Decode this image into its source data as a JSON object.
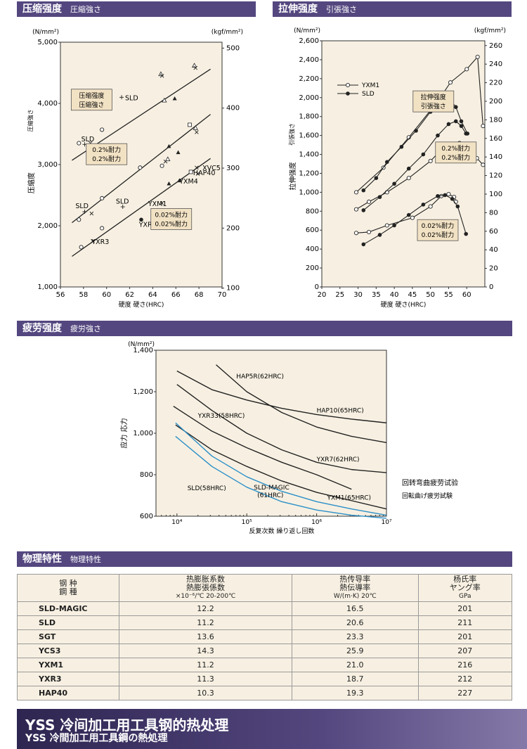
{
  "sections": {
    "compression": {
      "title": "压缩强度",
      "sub": "圧縮強さ"
    },
    "tensile": {
      "title": "拉伸强度",
      "sub": "引張強さ"
    },
    "fatigue": {
      "title": "疲劳强度",
      "sub": "疲労強さ"
    },
    "physical": {
      "title": "物理特性",
      "sub": "物理特性"
    }
  },
  "chart_data": [
    {
      "type": "scatter",
      "name": "compression",
      "xlabel": "硬度 硬さ(HRC)",
      "ylabel": "压缩度",
      "ylabel2": "圧縮強さ",
      "unit_left": "(N/mm²)",
      "unit_right": "(kgf/mm²)",
      "xlim": [
        56,
        70
      ],
      "ylim": [
        1000,
        5000
      ],
      "x_ticks": [
        "56",
        "58",
        "60",
        "62",
        "64",
        "66",
        "68",
        "70"
      ],
      "y_ticks": [
        "1,000",
        "2,000",
        "3,000",
        "4,000",
        "5,000"
      ],
      "y2_ticks": [
        "100",
        "200",
        "300",
        "400",
        "500"
      ],
      "y2_ticks_values": [
        980.7,
        1961.3,
        2942,
        3922.7,
        4903.3
      ],
      "lines": [
        {
          "x": [
            57,
            69
          ],
          "y": [
            3070,
            4560
          ]
        },
        {
          "x": [
            57,
            69
          ],
          "y": [
            2050,
            3820
          ]
        },
        {
          "x": [
            57,
            69
          ],
          "y": [
            1500,
            3100
          ]
        }
      ],
      "points": [
        {
          "x": 57.6,
          "y": 3350,
          "m": "o"
        },
        {
          "x": 58.1,
          "y": 3330,
          "m": "+"
        },
        {
          "x": 58.6,
          "y": 3350,
          "m": "x"
        },
        {
          "x": 59.6,
          "y": 3570,
          "m": "o"
        },
        {
          "x": 61.3,
          "y": 4100,
          "m": "+"
        },
        {
          "x": 64.7,
          "y": 4480,
          "m": "tri"
        },
        {
          "x": 64.8,
          "y": 4450,
          "m": "x"
        },
        {
          "x": 65.0,
          "y": 4050,
          "m": "tri"
        },
        {
          "x": 65.9,
          "y": 4080,
          "m": "trif"
        },
        {
          "x": 67.2,
          "y": 3650,
          "m": "sq"
        },
        {
          "x": 67.8,
          "y": 3530,
          "m": "x"
        },
        {
          "x": 67.7,
          "y": 3600,
          "m": "tri"
        },
        {
          "x": 67.6,
          "y": 4620,
          "m": "tri"
        },
        {
          "x": 67.7,
          "y": 4580,
          "m": "x"
        },
        {
          "x": 57.6,
          "y": 2100,
          "m": "o"
        },
        {
          "x": 58.1,
          "y": 2230,
          "m": "+"
        },
        {
          "x": 58.7,
          "y": 2200,
          "m": "x"
        },
        {
          "x": 59.6,
          "y": 2450,
          "m": "o"
        },
        {
          "x": 61.4,
          "y": 2310,
          "m": "+"
        },
        {
          "x": 62.9,
          "y": 2950,
          "m": "o"
        },
        {
          "x": 64.8,
          "y": 2980,
          "m": "o"
        },
        {
          "x": 65.1,
          "y": 3050,
          "m": "x"
        },
        {
          "x": 65.3,
          "y": 3090,
          "m": "tri"
        },
        {
          "x": 65.4,
          "y": 3300,
          "m": "trif"
        },
        {
          "x": 66.2,
          "y": 3200,
          "m": "trif"
        },
        {
          "x": 67.3,
          "y": 2880,
          "m": "sq"
        },
        {
          "x": 67.8,
          "y": 2950,
          "m": "x"
        },
        {
          "x": 57.8,
          "y": 1650,
          "m": "o"
        },
        {
          "x": 58.8,
          "y": 1750,
          "m": "x"
        },
        {
          "x": 59.6,
          "y": 1960,
          "m": "o"
        },
        {
          "x": 63.0,
          "y": 2100,
          "m": "dot"
        },
        {
          "x": 64.8,
          "y": 2370,
          "m": "x"
        },
        {
          "x": 65.4,
          "y": 2690,
          "m": "trif"
        },
        {
          "x": 66.3,
          "y": 2740,
          "m": "trif"
        },
        {
          "x": 67.9,
          "y": 2850,
          "m": "x"
        }
      ],
      "labels": [
        {
          "text": "SLD",
          "x": 61.6,
          "y": 4050
        },
        {
          "text": "SLD",
          "x": 57.8,
          "y": 3380
        },
        {
          "text": "SLD",
          "x": 57.3,
          "y": 2290
        },
        {
          "text": "SLD",
          "x": 60.8,
          "y": 2360
        },
        {
          "text": "YXM1",
          "x": 63.6,
          "y": 2320
        },
        {
          "text": "YXM4",
          "x": 66.3,
          "y": 2690
        },
        {
          "text": "XVC5",
          "x": 68.3,
          "y": 2910
        },
        {
          "text": "HAP40",
          "x": 67.5,
          "y": 2830
        },
        {
          "text": "YXR7",
          "x": 62.8,
          "y": 1980
        },
        {
          "text": "YXR3",
          "x": 58.7,
          "y": 1700
        }
      ],
      "boxes": [
        {
          "lines": [
            "压缩强度",
            "压縮強さ"
          ],
          "x": 58.7,
          "y": 4060
        },
        {
          "lines": [
            "0.2%耐力",
            "0.2%耐力"
          ],
          "x": 60.0,
          "y": 3170
        },
        {
          "lines": [
            "0.02%耐力",
            "0.02%耐力"
          ],
          "x": 65.6,
          "y": 2110
        }
      ]
    },
    {
      "type": "line",
      "name": "tensile",
      "xlabel": "硬度 硬さ(HRC)",
      "ylabel": "拉伸强度",
      "ylabel2": "引張強さ",
      "unit_left": "(N/mm²)",
      "unit_right": "(kgf/mm²)",
      "xlim": [
        20,
        65
      ],
      "ylim": [
        0,
        2600
      ],
      "x_ticks": [
        "20",
        "25",
        "30",
        "35",
        "40",
        "45",
        "50",
        "55",
        "60"
      ],
      "y_ticks": [
        "0",
        "200",
        "400",
        "600",
        "800",
        "1,000",
        "1,200",
        "1,400",
        "1,600",
        "1,800",
        "2,000",
        "2,200",
        "2,400",
        "2,600"
      ],
      "y2_ticks": [
        "0",
        "20",
        "40",
        "60",
        "80",
        "100",
        "120",
        "140",
        "160",
        "180",
        "200",
        "220",
        "240",
        "260"
      ],
      "y2_ticks_values": [
        0,
        196.1,
        392.3,
        588.4,
        784.5,
        980.7,
        1176.8,
        1372.9,
        1569.1,
        1765.2,
        1961.3,
        2157.5,
        2353.6,
        2549.7
      ],
      "legend": [
        {
          "name": "YXM1",
          "m": "o"
        },
        {
          "name": "SLD",
          "m": "dot"
        }
      ],
      "series": [
        {
          "name": "YXM1",
          "m": "o",
          "x": [
            29.5,
            37,
            44,
            52,
            55.5,
            60,
            63,
            64.5
          ],
          "y": [
            1000,
            1260,
            1580,
            1960,
            2160,
            2300,
            2430,
            1700
          ]
        },
        {
          "name": "YXM1",
          "m": "o",
          "x": [
            29.5,
            33,
            38,
            44,
            50,
            54,
            58,
            62.8,
            64.5
          ],
          "y": [
            820,
            900,
            1000,
            1150,
            1330,
            1490,
            1520,
            1360,
            1290
          ]
        },
        {
          "name": "YXM1",
          "m": "o",
          "x": [
            29.5,
            33,
            38,
            45,
            50,
            53,
            55,
            56.5,
            57
          ],
          "y": [
            570,
            580,
            650,
            730,
            850,
            960,
            980,
            950,
            900
          ]
        },
        {
          "name": "SLD",
          "m": "dot",
          "x": [
            31.5,
            35,
            38,
            42,
            46,
            50,
            53,
            55,
            57,
            58.5,
            60.2
          ],
          "y": [
            1020,
            1150,
            1320,
            1480,
            1650,
            1850,
            1980,
            2000,
            1900,
            1750,
            1620
          ]
        },
        {
          "name": "SLD",
          "m": "dot",
          "x": [
            31.5,
            36,
            40,
            44,
            48,
            52,
            55,
            57,
            58.5,
            59.8
          ],
          "y": [
            810,
            950,
            1090,
            1250,
            1400,
            1600,
            1720,
            1750,
            1700,
            1620
          ]
        },
        {
          "name": "SLD",
          "m": "dot",
          "x": [
            31.5,
            36,
            40,
            44,
            48,
            52,
            54,
            56,
            57.5,
            59.8
          ],
          "y": [
            450,
            550,
            650,
            760,
            870,
            960,
            970,
            930,
            850,
            560
          ]
        }
      ],
      "boxes": [
        {
          "lines": [
            "拉伸强度",
            "引張強さ"
          ],
          "x": 50.8,
          "y": 1960
        },
        {
          "lines": [
            "0.2%耐力",
            "0.2%耐力"
          ],
          "x": 57.0,
          "y": 1420
        },
        {
          "lines": [
            "0.02%耐力",
            "0.02%耐力"
          ],
          "x": 52.0,
          "y": 600
        }
      ]
    },
    {
      "type": "line",
      "name": "fatigue",
      "xlabel": "反复次数 繰り返し回数",
      "ylabel": "应力 応力",
      "unit_left": "(N/mm²)",
      "x_log": true,
      "xlim": [
        3.7,
        7
      ],
      "ylim": [
        600,
        1400
      ],
      "x_ticks": [
        "10⁴",
        "10⁵",
        "10⁶",
        "10⁷"
      ],
      "x_ticks_values": [
        4,
        5,
        6,
        7
      ],
      "y_ticks": [
        "600",
        "800",
        "1,000",
        "1,200",
        "1,400"
      ],
      "series": [
        {
          "name": "HAP5R(62HRC)",
          "color": "#222222",
          "x": [
            4.56,
            5.0,
            5.5,
            6.0,
            6.5,
            7.0
          ],
          "y": [
            1330,
            1200,
            1100,
            1030,
            985,
            955
          ]
        },
        {
          "name": "HAP10(65HRC)",
          "color": "#222222",
          "x": [
            4.0,
            4.5,
            5.0,
            5.5,
            6.0,
            6.5,
            7.0
          ],
          "y": [
            1300,
            1210,
            1160,
            1120,
            1090,
            1068,
            1050
          ]
        },
        {
          "name": "YXR33(58HRC)",
          "color": "#222222",
          "x": [
            4.0,
            4.5,
            5.0,
            5.5,
            6.0,
            6.5,
            7.0
          ],
          "y": [
            1235,
            1110,
            1000,
            920,
            860,
            825,
            810
          ]
        },
        {
          "name": "YXR7(62HRC)",
          "color": "#222222",
          "x": [
            3.95,
            4.5,
            5.0,
            5.5,
            6.0,
            6.5
          ],
          "y": [
            1130,
            1010,
            930,
            860,
            800,
            730
          ]
        },
        {
          "name": "YXM1(65HRC)",
          "color": "#222222",
          "x": [
            3.98,
            4.5,
            5.0,
            5.5,
            6.0,
            6.5,
            7.0
          ],
          "y": [
            1040,
            920,
            840,
            770,
            715,
            675,
            635
          ]
        },
        {
          "name": "SLD-MAGIC(61HRC)",
          "color": "#2b8fc8",
          "x": [
            3.98,
            4.5,
            5.0,
            5.5,
            6.0,
            6.5,
            7.0
          ],
          "y": [
            1050,
            890,
            790,
            720,
            670,
            635,
            605
          ]
        },
        {
          "name": "SLD(58HRC)",
          "color": "#2b8fc8",
          "x": [
            3.98,
            4.5,
            5.0,
            5.5,
            6.0,
            6.5,
            7.0
          ],
          "y": [
            985,
            840,
            740,
            670,
            630,
            605,
            590
          ]
        }
      ],
      "labels": [
        {
          "text": "HAP5R(62HRC)",
          "x": 4.85,
          "y": 1265
        },
        {
          "text": "HAP10(65HRC)",
          "x": 6.0,
          "y": 1100
        },
        {
          "text": "YXR33(58HRC)",
          "x": 4.3,
          "y": 1075
        },
        {
          "text": "YXR7(62HRC)",
          "x": 6.0,
          "y": 865
        },
        {
          "text": "SLD(58HRC)",
          "x": 4.15,
          "y": 725
        },
        {
          "text": "SLD-MAGIC",
          "x": 5.1,
          "y": 728
        },
        {
          "text": "(61HRC)",
          "x": 5.15,
          "y": 692
        },
        {
          "text": "YXM1(65HRC)",
          "x": 6.15,
          "y": 680
        }
      ],
      "side_note": [
        "回转弯曲疲劳试验",
        "回転曲げ疲労試験"
      ]
    }
  ],
  "table": {
    "headers": [
      {
        "main": "钢 种",
        "sub": "鋼 種"
      },
      {
        "main": "热膨胀系数",
        "sub": "熱膨張係数",
        "unit": "×10⁻⁶/℃ 20-200℃"
      },
      {
        "main": "热传导率",
        "sub": "熱伝導率",
        "unit": "W/(m·K) 20℃"
      },
      {
        "main": "杨氏率",
        "sub": "ヤング率",
        "unit": "GPa"
      }
    ],
    "rows": [
      [
        "SLD-MAGIC",
        "12.2",
        "16.5",
        "201"
      ],
      [
        "SLD",
        "11.2",
        "20.6",
        "211"
      ],
      [
        "SGT",
        "13.6",
        "23.3",
        "201"
      ],
      [
        "YCS3",
        "14.3",
        "25.9",
        "207"
      ],
      [
        "YXM1",
        "11.2",
        "21.0",
        "216"
      ],
      [
        "YXR3",
        "11.3",
        "18.7",
        "212"
      ],
      [
        "HAP40",
        "10.3",
        "19.3",
        "227"
      ]
    ]
  },
  "footer": {
    "brand": "YSS",
    "line1": "冷间加工用工具钢的热处理",
    "line2": "冷間加工用工具鋼の熱処理"
  }
}
